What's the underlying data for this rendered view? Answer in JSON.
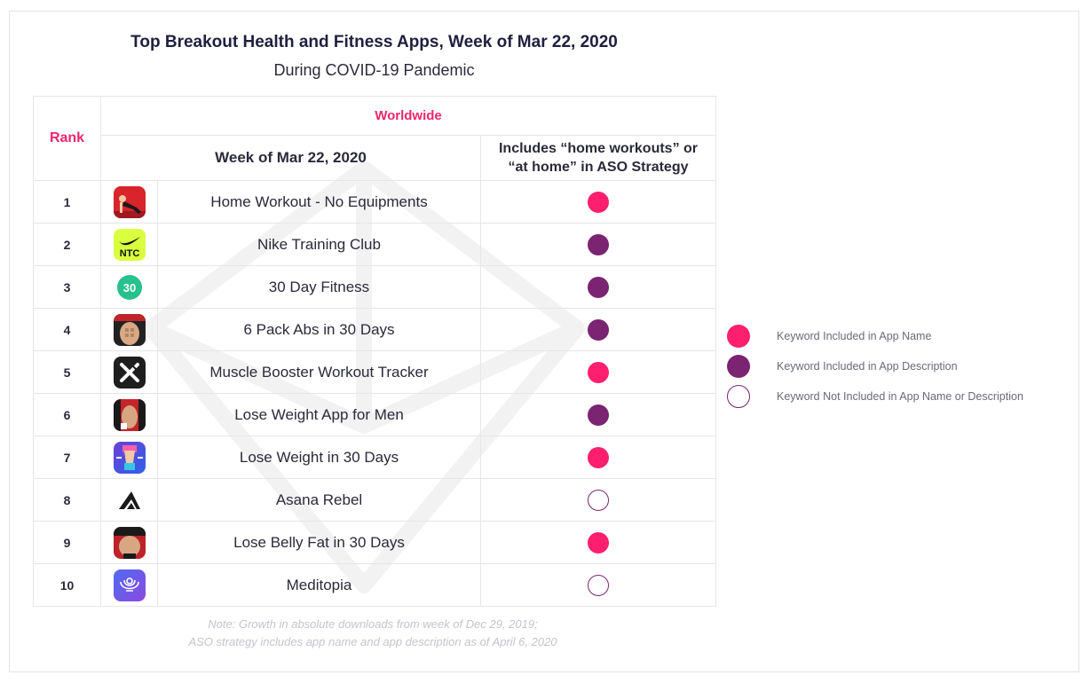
{
  "title": "Top Breakout Health and Fitness Apps, Week of Mar 22, 2020",
  "subtitle": "During COVID-19 Pandemic",
  "table": {
    "rank_header": "Rank",
    "region_header": "Worldwide",
    "week_header": "Week of Mar 22, 2020",
    "aso_header_line1": "Includes “home workouts” or",
    "aso_header_line2": "“at home” in ASO Strategy",
    "rows": [
      {
        "rank": "1",
        "app": "Home Workout - No Equipments",
        "icon": "home-workout-icon",
        "keyword": "app-name"
      },
      {
        "rank": "2",
        "app": "Nike Training Club",
        "icon": "nike-ntc-icon",
        "icon_text": "NTC",
        "keyword": "app-description"
      },
      {
        "rank": "3",
        "app": "30 Day Fitness",
        "icon": "thirty-day-fitness-icon",
        "icon_text": "30",
        "keyword": "app-description"
      },
      {
        "rank": "4",
        "app": "6 Pack Abs in 30 Days",
        "icon": "six-pack-abs-icon",
        "keyword": "app-description"
      },
      {
        "rank": "5",
        "app": "Muscle Booster Workout Tracker",
        "icon": "muscle-booster-icon",
        "keyword": "app-name"
      },
      {
        "rank": "6",
        "app": "Lose Weight App for Men",
        "icon": "lose-weight-men-icon",
        "keyword": "app-description"
      },
      {
        "rank": "7",
        "app": "Lose Weight in 30 Days",
        "icon": "lose-weight-30-icon",
        "keyword": "app-name"
      },
      {
        "rank": "8",
        "app": "Asana Rebel",
        "icon": "asana-rebel-icon",
        "keyword": "not-included"
      },
      {
        "rank": "9",
        "app": "Lose Belly Fat in 30 Days",
        "icon": "lose-belly-fat-icon",
        "keyword": "app-name"
      },
      {
        "rank": "10",
        "app": "Meditopia",
        "icon": "meditopia-icon",
        "keyword": "not-included"
      }
    ]
  },
  "legend": [
    {
      "key": "app-name",
      "label": "Keyword Included in App Name",
      "color": "#ff1f6e"
    },
    {
      "key": "app-description",
      "label": "Keyword Included in App Description",
      "color": "#7b2472"
    },
    {
      "key": "not-included",
      "label": "Keyword Not Included in App Name or Description",
      "color": "#ffffff"
    }
  ],
  "note_line1": "Note: Growth in absolute downloads from week of Dec 29, 2019;",
  "note_line2": "ASO strategy includes app name and app description as of April 6, 2020",
  "colors": {
    "accent": "#f0266b",
    "pink": "#ff1f6e",
    "purple": "#7b2472"
  }
}
